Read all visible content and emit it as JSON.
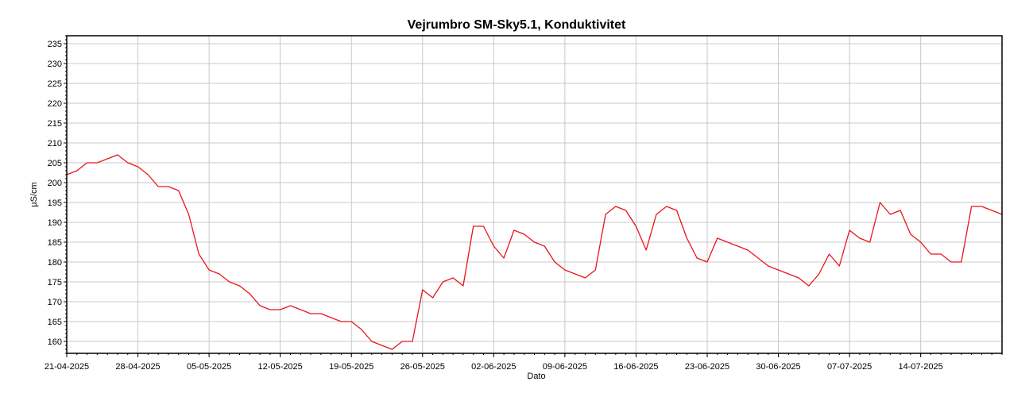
{
  "chart_data": {
    "type": "line",
    "title": "Vejrumbro SM-Sky5.1, Konduktivitet",
    "xlabel": "Dato",
    "ylabel": "µS/cm",
    "xlim": [
      "2025-04-21",
      "2025-07-22"
    ],
    "ylim": [
      157,
      237
    ],
    "grid": true,
    "x_ticks": [
      "21-04-2025",
      "28-04-2025",
      "05-05-2025",
      "12-05-2025",
      "19-05-2025",
      "26-05-2025",
      "02-06-2025",
      "09-06-2025",
      "16-06-2025",
      "23-06-2025",
      "30-06-2025",
      "07-07-2025",
      "14-07-2025"
    ],
    "y_ticks": [
      160,
      165,
      170,
      175,
      180,
      185,
      190,
      195,
      200,
      205,
      210,
      215,
      220,
      225,
      230,
      235
    ],
    "series": [
      {
        "color": "#e8141c",
        "points": [
          [
            "2025-04-21",
            202
          ],
          [
            "2025-04-22",
            203
          ],
          [
            "2025-04-23",
            205
          ],
          [
            "2025-04-24",
            205
          ],
          [
            "2025-04-25",
            206
          ],
          [
            "2025-04-26",
            207
          ],
          [
            "2025-04-27",
            205
          ],
          [
            "2025-04-28",
            204
          ],
          [
            "2025-04-29",
            202
          ],
          [
            "2025-04-30",
            199
          ],
          [
            "2025-05-01",
            199
          ],
          [
            "2025-05-02",
            198
          ],
          [
            "2025-05-03",
            192
          ],
          [
            "2025-05-04",
            182
          ],
          [
            "2025-05-05",
            178
          ],
          [
            "2025-05-06",
            177
          ],
          [
            "2025-05-07",
            175
          ],
          [
            "2025-05-08",
            174
          ],
          [
            "2025-05-09",
            172
          ],
          [
            "2025-05-10",
            169
          ],
          [
            "2025-05-11",
            168
          ],
          [
            "2025-05-12",
            168
          ],
          [
            "2025-05-13",
            169
          ],
          [
            "2025-05-14",
            168
          ],
          [
            "2025-05-15",
            167
          ],
          [
            "2025-05-16",
            167
          ],
          [
            "2025-05-17",
            166
          ],
          [
            "2025-05-18",
            165
          ],
          [
            "2025-05-19",
            165
          ],
          [
            "2025-05-20",
            163
          ],
          [
            "2025-05-21",
            160
          ],
          [
            "2025-05-22",
            159
          ],
          [
            "2025-05-23",
            158
          ],
          [
            "2025-05-24",
            160
          ],
          [
            "2025-05-25",
            160
          ],
          [
            "2025-05-26",
            173
          ],
          [
            "2025-05-27",
            171
          ],
          [
            "2025-05-28",
            175
          ],
          [
            "2025-05-29",
            176
          ],
          [
            "2025-05-30",
            174
          ],
          [
            "2025-05-31",
            189
          ],
          [
            "2025-06-01",
            189
          ],
          [
            "2025-06-02",
            184
          ],
          [
            "2025-06-03",
            181
          ],
          [
            "2025-06-04",
            188
          ],
          [
            "2025-06-05",
            187
          ],
          [
            "2025-06-06",
            185
          ],
          [
            "2025-06-07",
            184
          ],
          [
            "2025-06-08",
            180
          ],
          [
            "2025-06-09",
            178
          ],
          [
            "2025-06-10",
            177
          ],
          [
            "2025-06-11",
            176
          ],
          [
            "2025-06-12",
            178
          ],
          [
            "2025-06-13",
            192
          ],
          [
            "2025-06-14",
            194
          ],
          [
            "2025-06-15",
            193
          ],
          [
            "2025-06-16",
            189
          ],
          [
            "2025-06-17",
            183
          ],
          [
            "2025-06-18",
            192
          ],
          [
            "2025-06-19",
            194
          ],
          [
            "2025-06-20",
            193
          ],
          [
            "2025-06-21",
            186
          ],
          [
            "2025-06-22",
            181
          ],
          [
            "2025-06-23",
            180
          ],
          [
            "2025-06-24",
            186
          ],
          [
            "2025-06-25",
            185
          ],
          [
            "2025-06-26",
            184
          ],
          [
            "2025-06-27",
            183
          ],
          [
            "2025-06-28",
            181
          ],
          [
            "2025-06-29",
            179
          ],
          [
            "2025-06-30",
            178
          ],
          [
            "2025-07-01",
            177
          ],
          [
            "2025-07-02",
            176
          ],
          [
            "2025-07-03",
            174
          ],
          [
            "2025-07-04",
            177
          ],
          [
            "2025-07-05",
            182
          ],
          [
            "2025-07-06",
            179
          ],
          [
            "2025-07-07",
            188
          ],
          [
            "2025-07-08",
            186
          ],
          [
            "2025-07-09",
            185
          ],
          [
            "2025-07-10",
            195
          ],
          [
            "2025-07-11",
            192
          ],
          [
            "2025-07-12",
            193
          ],
          [
            "2025-07-13",
            187
          ],
          [
            "2025-07-14",
            185
          ],
          [
            "2025-07-15",
            182
          ],
          [
            "2025-07-16",
            182
          ],
          [
            "2025-07-17",
            180
          ],
          [
            "2025-07-18",
            180
          ],
          [
            "2025-07-19",
            194
          ],
          [
            "2025-07-20",
            194
          ],
          [
            "2025-07-21",
            193
          ],
          [
            "2025-07-22",
            192
          ]
        ]
      }
    ]
  }
}
